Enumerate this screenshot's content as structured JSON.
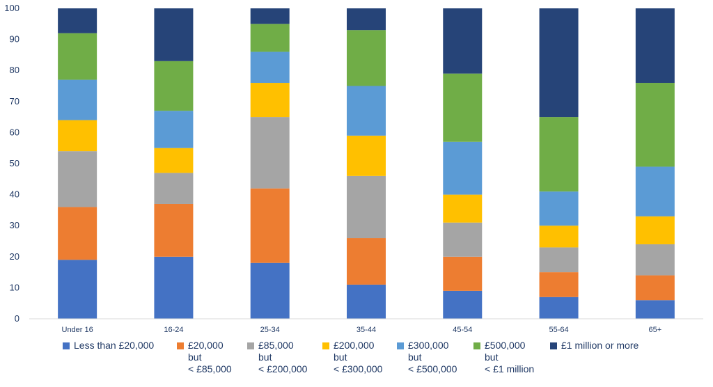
{
  "chart_data": {
    "type": "bar",
    "stacked": true,
    "categories": [
      "Under 16",
      "16-24",
      "25-34",
      "35-44",
      "45-54",
      "55-64",
      "65+"
    ],
    "ylim": [
      0,
      100
    ],
    "yticks": [
      0,
      10,
      20,
      30,
      40,
      50,
      60,
      70,
      80,
      90,
      100
    ],
    "ytick_labels": [
      "0",
      "10",
      "20",
      "30",
      "40",
      "50",
      "60",
      "70",
      "80",
      "90",
      "100"
    ],
    "grid": false,
    "legend_position": "bottom",
    "series": [
      {
        "name": "Less than £20,000",
        "color": "#4472c4",
        "values": [
          19,
          20,
          18,
          11,
          9,
          7,
          6
        ]
      },
      {
        "name": "£20,000\nbut\n< £85,000",
        "color": "#ed7d31",
        "values": [
          17,
          17,
          24,
          15,
          11,
          8,
          8
        ]
      },
      {
        "name": "£85,000\nbut\n< £200,000",
        "color": "#a5a5a5",
        "values": [
          18,
          10,
          23,
          20,
          11,
          8,
          10
        ]
      },
      {
        "name": "£200,000\nbut\n< £300,000",
        "color": "#ffc000",
        "values": [
          10,
          8,
          11,
          13,
          9,
          7,
          9
        ]
      },
      {
        "name": "£300,000\nbut\n< £500,000",
        "color": "#5b9bd5",
        "values": [
          13,
          12,
          10,
          16,
          17,
          11,
          16
        ]
      },
      {
        "name": "£500,000\nbut\n< £1 million",
        "color": "#70ad47",
        "values": [
          15,
          16,
          9,
          18,
          22,
          24,
          27
        ]
      },
      {
        "name": "£1 million or more",
        "color": "#264478",
        "values": [
          8,
          17,
          5,
          7,
          21,
          35,
          24
        ]
      }
    ]
  }
}
